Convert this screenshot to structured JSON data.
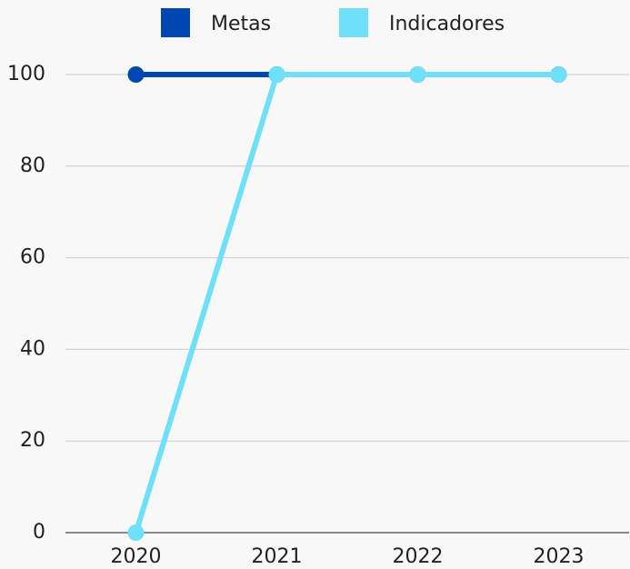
{
  "chart_data": {
    "type": "line",
    "categories": [
      "2020",
      "2021",
      "2022",
      "2023"
    ],
    "series": [
      {
        "name": "Metas",
        "color": "#0047b3",
        "values": [
          100,
          100,
          100,
          100
        ]
      },
      {
        "name": "Indicadores",
        "color": "#6fe0fa",
        "values": [
          0,
          100,
          100,
          100
        ]
      }
    ],
    "ylim": [
      0,
      100
    ],
    "yticks": [
      0,
      20,
      40,
      60,
      80,
      100
    ],
    "grid": true,
    "legend": "top"
  }
}
